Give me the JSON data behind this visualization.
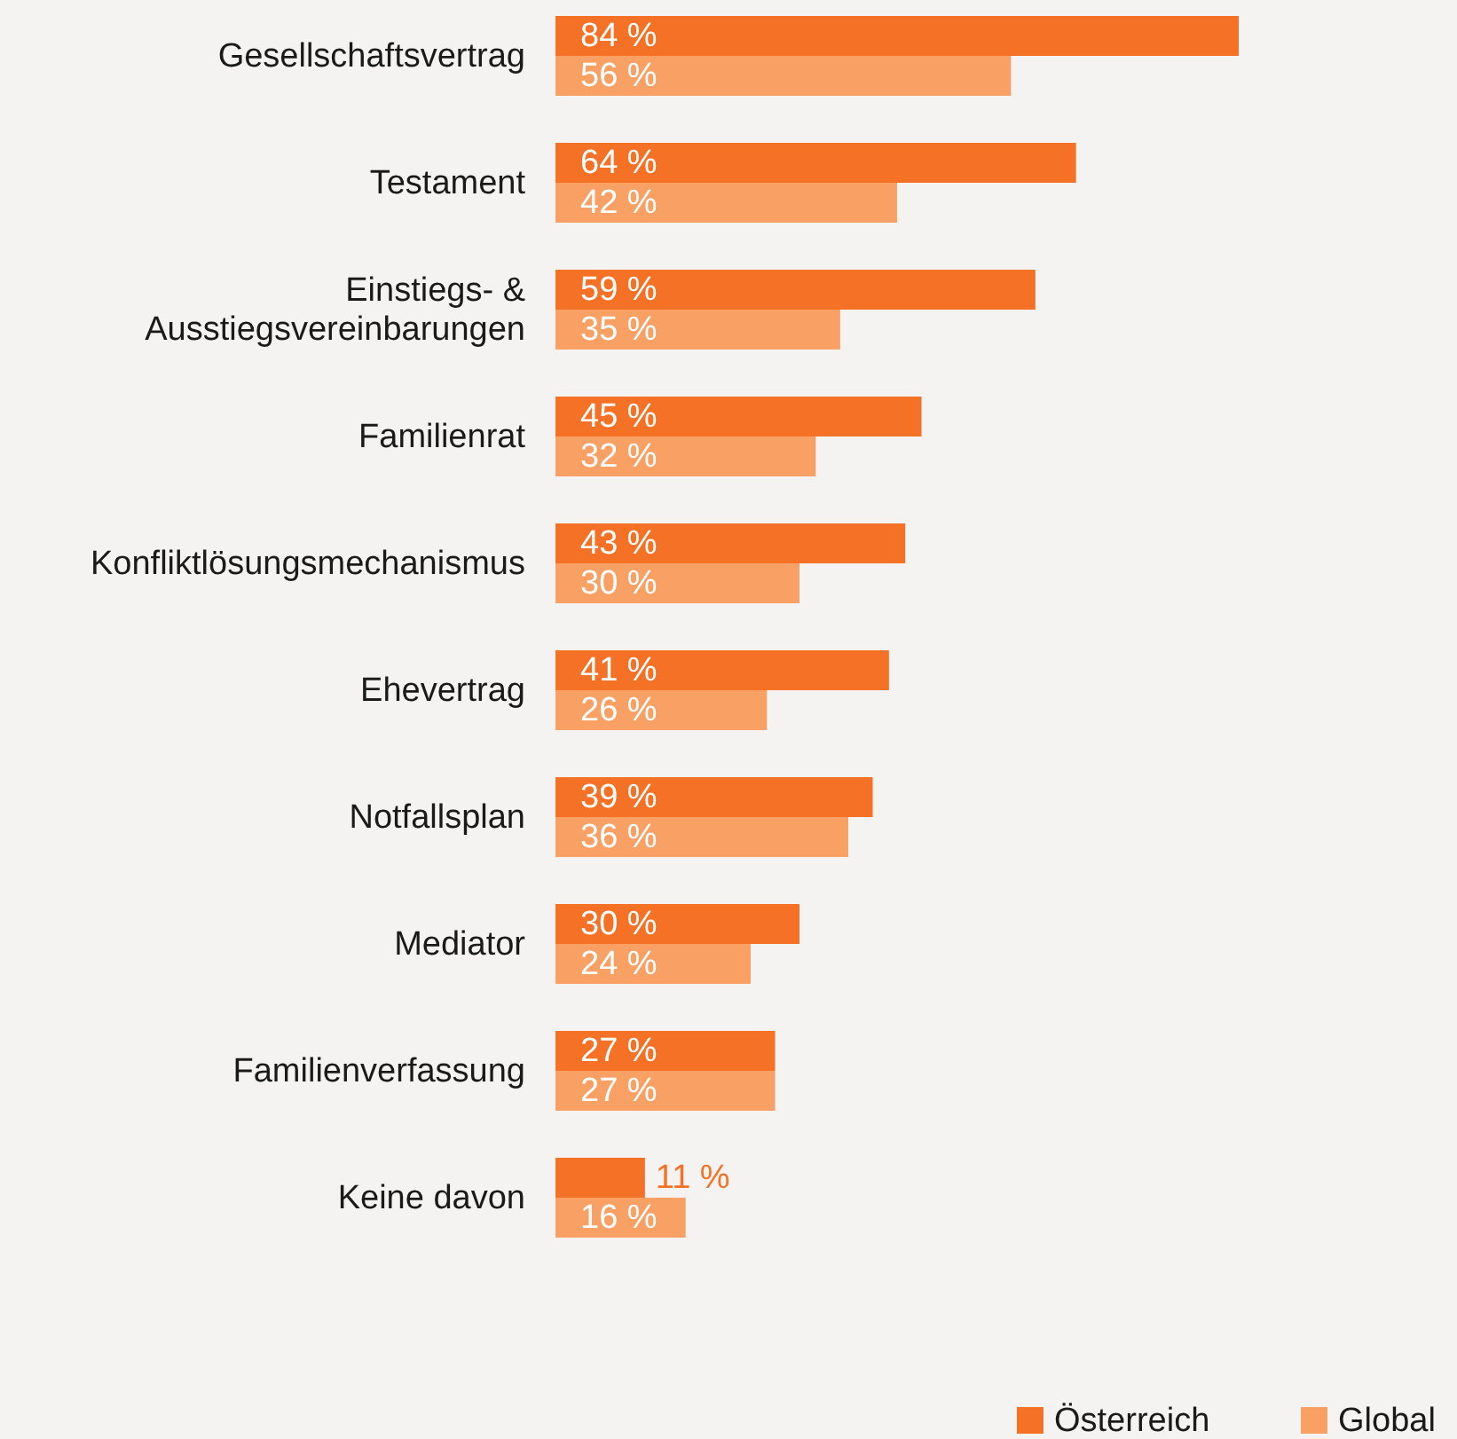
{
  "chart_data": {
    "type": "bar",
    "orientation": "horizontal",
    "categories": [
      "Gesellschaftsvertrag",
      "Testament",
      "Einstiegs- & Ausstiegsvereinbarungen",
      "Familienrat",
      "Konfliktlösungsmechanismus",
      "Ehevertrag",
      "Notfallsplan",
      "Mediator",
      "Familienverfassung",
      "Keine davon"
    ],
    "series": [
      {
        "name": "Österreich",
        "color": "#f47126",
        "values": [
          84,
          64,
          59,
          45,
          43,
          41,
          39,
          30,
          27,
          11
        ],
        "value_labels": [
          "84 %",
          "64 %",
          "59 %",
          "45 %",
          "43 %",
          "41 %",
          "39 %",
          "30 %",
          "27 %",
          "11 %"
        ]
      },
      {
        "name": "Global",
        "color": "#f9a064",
        "values": [
          56,
          42,
          35,
          32,
          30,
          26,
          36,
          24,
          27,
          16
        ],
        "value_labels": [
          "56 %",
          "42 %",
          "35 %",
          "32 %",
          "30 %",
          "26 %",
          "36 %",
          "24 %",
          "27 %",
          "16 %"
        ]
      }
    ],
    "legend": "bottom right",
    "grid": false
  }
}
